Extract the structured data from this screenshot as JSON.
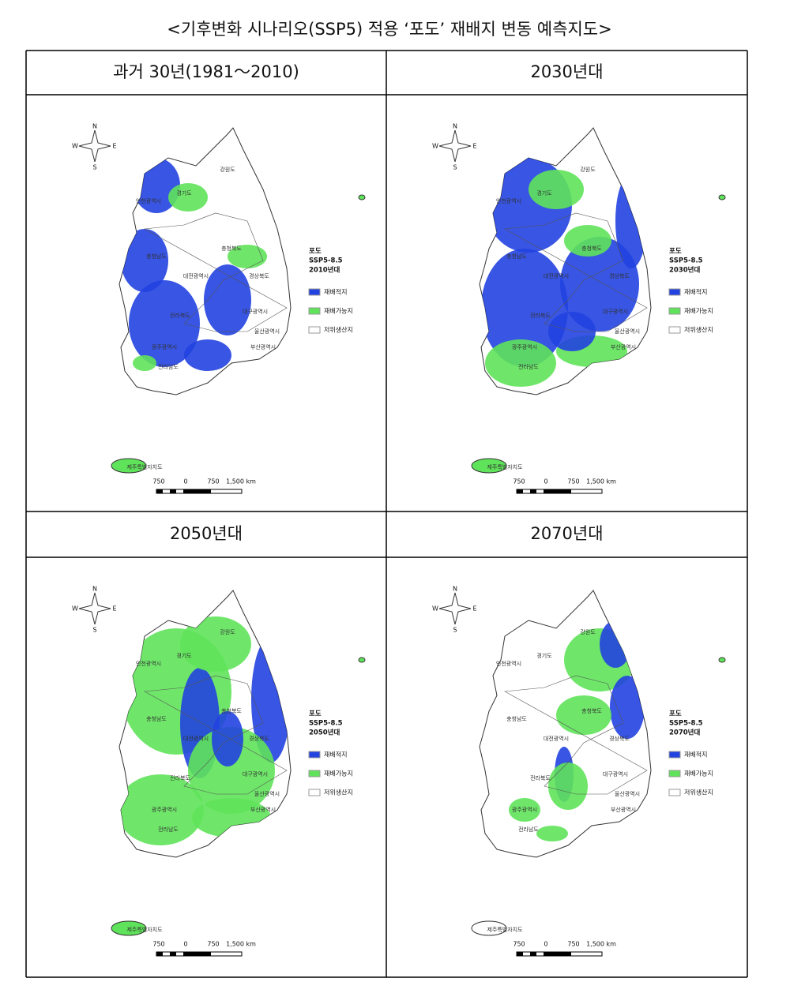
{
  "title": "<기후변화 시나리오(SSP5) 적용 ‘포도’ 재배지 변동 예측지도>",
  "panels": [
    {
      "header": "과거 30년(1981～2010)",
      "legend_title": "포도",
      "scenario": "SSP5-8.5",
      "period": "2010년대"
    },
    {
      "header": "2030년대",
      "legend_title": "포도",
      "scenario": "SSP5-8.5",
      "period": "2030년대"
    },
    {
      "header": "2050년대",
      "legend_title": "포도",
      "scenario": "SSP5-8.5",
      "period": "2050년대"
    },
    {
      "header": "2070년대",
      "legend_title": "포도",
      "scenario": "SSP5-8.5",
      "period": "2070년대"
    }
  ],
  "legend": [
    "재배적지",
    "재배가능지",
    "저위생산지"
  ],
  "compass": [
    "N",
    "W",
    "E",
    "S"
  ],
  "scale_labels": [
    "750",
    "0",
    "750",
    "1,500 km"
  ],
  "map_labels": [
    "강원도",
    "경기도",
    "인천광역시",
    "충청북도",
    "충청남도",
    "대전광역시",
    "경상북도",
    "전라북도",
    "대구광역시",
    "울산광역시",
    "부산광역시",
    "광주광역시",
    "전라남도",
    "제주특별자치도"
  ]
}
